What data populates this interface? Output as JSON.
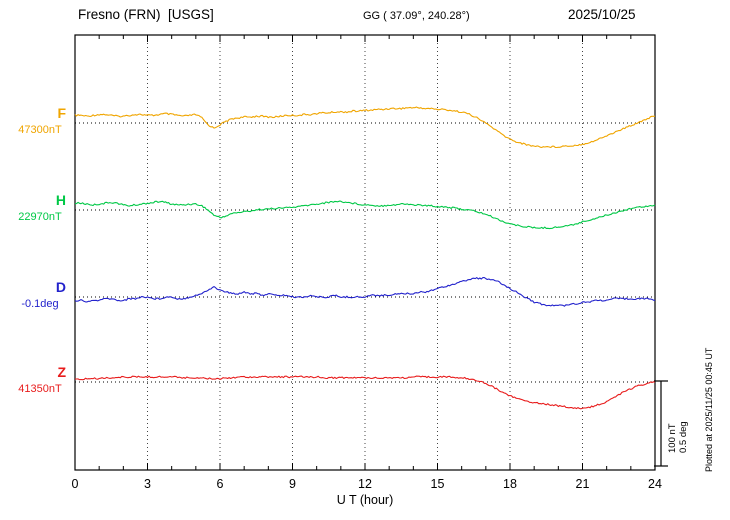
{
  "header": {
    "station": "Fresno (FRN)  [USGS]",
    "coords": "GG ( 37.09°, 240.28°)",
    "date": "2025/10/25"
  },
  "footer_note": "Plotted at 2025/11/25 00:45 UT",
  "scale_bar": {
    "labels": [
      "100 nT",
      "0.5 deg"
    ]
  },
  "chart_data": {
    "type": "line",
    "title": "Fresno (FRN) [USGS] magnetogram, 2025/10/25",
    "xlabel": "U T (hour)",
    "x_start": 0,
    "x_end": 24,
    "x_step_hours": 0.25,
    "x_ticks": [
      0,
      3,
      6,
      9,
      12,
      15,
      18,
      21,
      24
    ],
    "scale": {
      "nT_per_bar": 100,
      "deg_per_bar": 0.5
    },
    "series": [
      {
        "name": "F",
        "units": "nT",
        "baseline_label": "47300nT",
        "baseline_value": 47300,
        "color": "#f0a500",
        "offsets": [
          9,
          9,
          8,
          9,
          10,
          10,
          9,
          8,
          8,
          9,
          10,
          10,
          9,
          9,
          10,
          11,
          10,
          9,
          8,
          9,
          10,
          6,
          -2,
          -6,
          -2,
          2,
          5,
          6,
          7,
          7,
          8,
          8,
          7,
          7,
          8,
          9,
          9,
          9,
          10,
          10,
          11,
          12,
          12,
          13,
          13,
          13,
          14,
          14,
          15,
          15,
          16,
          16,
          17,
          17,
          17,
          18,
          18,
          18,
          17,
          17,
          16,
          16,
          15,
          14,
          13,
          11,
          8,
          4,
          0,
          -5,
          -10,
          -15,
          -19,
          -22,
          -24,
          -26,
          -27,
          -28,
          -28,
          -28,
          -28,
          -27,
          -27,
          -26,
          -25,
          -23,
          -21,
          -18,
          -15,
          -12,
          -9,
          -6,
          -3,
          0,
          3,
          6,
          8
        ]
      },
      {
        "name": "H",
        "units": "nT",
        "baseline_label": "22970nT",
        "baseline_value": 22970,
        "color": "#00c846",
        "offsets": [
          8,
          8,
          7,
          6,
          7,
          8,
          9,
          8,
          6,
          5,
          6,
          7,
          8,
          9,
          10,
          9,
          7,
          6,
          6,
          7,
          7,
          5,
          0,
          -6,
          -9,
          -7,
          -4,
          -3,
          -2,
          -1,
          0,
          1,
          1,
          2,
          2,
          3,
          3,
          4,
          5,
          6,
          7,
          8,
          9,
          10,
          10,
          9,
          8,
          7,
          6,
          6,
          5,
          5,
          6,
          6,
          7,
          7,
          6,
          6,
          5,
          5,
          4,
          4,
          3,
          2,
          1,
          0,
          -1,
          -3,
          -5,
          -8,
          -11,
          -14,
          -16,
          -18,
          -19,
          -20,
          -21,
          -21,
          -21,
          -21,
          -20,
          -19,
          -18,
          -16,
          -14,
          -12,
          -10,
          -8,
          -6,
          -4,
          -2,
          0,
          2,
          3,
          4,
          5,
          6
        ]
      },
      {
        "name": "D",
        "units": "deg",
        "baseline_label": "-0.1deg",
        "baseline_value": -0.1,
        "color": "#2222cc",
        "offsets": [
          -0.02,
          -0.02,
          -0.03,
          -0.02,
          -0.02,
          -0.01,
          -0.01,
          -0.02,
          -0.02,
          -0.01,
          -0.01,
          0,
          0,
          -0.01,
          -0.01,
          0,
          0,
          -0.01,
          -0.01,
          0,
          0.01,
          0.02,
          0.04,
          0.06,
          0.04,
          0.03,
          0.02,
          0.02,
          0.03,
          0.02,
          0.02,
          0.01,
          0.02,
          0.01,
          0.01,
          0.01,
          0,
          0,
          0,
          0.01,
          0,
          0,
          0,
          0.01,
          0,
          0,
          0,
          0,
          0,
          0.01,
          0.01,
          0.01,
          0.01,
          0.02,
          0.02,
          0.02,
          0.02,
          0.03,
          0.03,
          0.04,
          0.05,
          0.06,
          0.07,
          0.08,
          0.09,
          0.1,
          0.11,
          0.11,
          0.11,
          0.1,
          0.09,
          0.07,
          0.05,
          0.03,
          0.01,
          -0.01,
          -0.03,
          -0.04,
          -0.05,
          -0.05,
          -0.05,
          -0.05,
          -0.04,
          -0.04,
          -0.03,
          -0.03,
          -0.02,
          -0.02,
          -0.02,
          -0.01,
          -0.01,
          -0.01,
          -0.01,
          -0.01,
          -0.01,
          -0.01,
          -0.02
        ]
      },
      {
        "name": "Z",
        "units": "nT",
        "baseline_label": "41350nT",
        "baseline_value": 41350,
        "color": "#e81c1c",
        "offsets": [
          3,
          3,
          4,
          4,
          4,
          5,
          5,
          5,
          6,
          6,
          6,
          6,
          6,
          6,
          6,
          6,
          6,
          6,
          5,
          5,
          5,
          5,
          4,
          4,
          4,
          5,
          5,
          6,
          6,
          6,
          6,
          6,
          6,
          6,
          6,
          6,
          6,
          6,
          6,
          6,
          6,
          5,
          5,
          5,
          5,
          5,
          5,
          5,
          5,
          5,
          5,
          5,
          5,
          5,
          5,
          5,
          6,
          6,
          6,
          6,
          6,
          6,
          6,
          5,
          5,
          4,
          3,
          1,
          -2,
          -5,
          -9,
          -13,
          -16,
          -19,
          -21,
          -23,
          -24,
          -25,
          -26,
          -27,
          -28,
          -29,
          -30,
          -31,
          -31,
          -30,
          -28,
          -26,
          -23,
          -19,
          -15,
          -11,
          -8,
          -5,
          -3,
          -1,
          0
        ]
      }
    ]
  }
}
